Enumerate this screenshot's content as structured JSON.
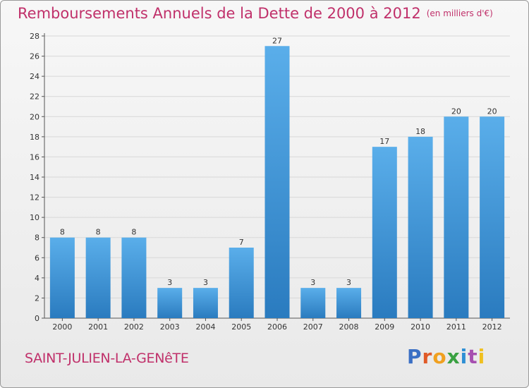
{
  "header": {
    "title": "Remboursements Annuels de la Dette de 2000 à 2012",
    "subtitle": "(en milliers d'€)"
  },
  "footer": {
    "commune": "SAINT-JULIEN-LA-GENêTE",
    "logo": [
      "P",
      "r",
      "o",
      "x",
      "i",
      "t",
      "i"
    ]
  },
  "colors": {
    "title": "#c0306a",
    "bar_top": "#5aaeea",
    "bar_bottom": "#2a7bbf",
    "grid": "#d8d8d8"
  },
  "chart_data": {
    "type": "bar",
    "categories": [
      "2000",
      "2001",
      "2002",
      "2003",
      "2004",
      "2005",
      "2006",
      "2007",
      "2008",
      "2009",
      "2010",
      "2011",
      "2012"
    ],
    "values": [
      8,
      8,
      8,
      3,
      3,
      7,
      27,
      3,
      3,
      17,
      18,
      20,
      20
    ],
    "data_labels": [
      "8",
      "8",
      "8",
      "3",
      "3",
      "7",
      "27",
      "3",
      "3",
      "17",
      "18",
      "20",
      "20"
    ],
    "title": "Remboursements Annuels de la Dette de 2000 à 2012",
    "subtitle": "(en milliers d'€)",
    "xlabel": "",
    "ylabel": "",
    "ylim": [
      0,
      28
    ],
    "yticks": [
      "0",
      "2",
      "4",
      "6",
      "8",
      "10",
      "12",
      "14",
      "16",
      "18",
      "20",
      "22",
      "24",
      "26",
      "28"
    ],
    "grid": true,
    "legend": "none"
  }
}
